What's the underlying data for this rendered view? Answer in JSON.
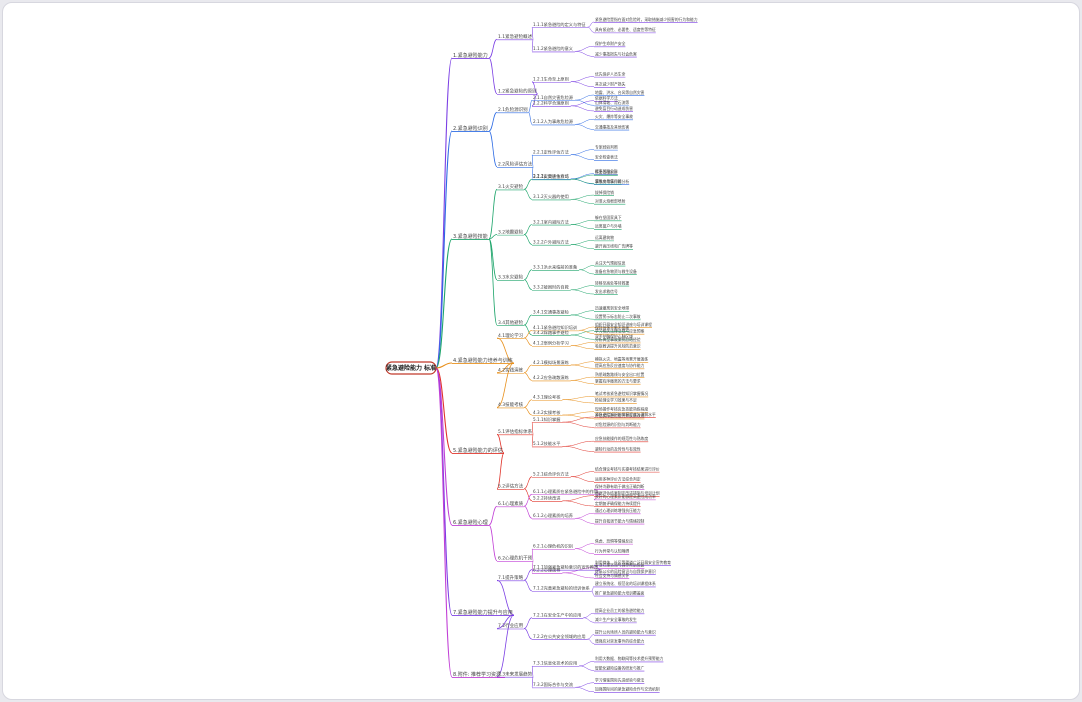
{
  "mindmap": {
    "root": "紧急避险能力 标准",
    "branches": [
      {
        "label": "1.紧急避险能力",
        "color": "#7b3fe4",
        "children": [
          {
            "label": "1.1紧急避险概述",
            "children": [
              {
                "label": "1.1.1紧急避险的定义与特征",
                "items": [
                  "紧急避险是指在面对危险时，采取措施减少损害的行为和能力",
                  "具有紧迫性、必要性、适度性等特征"
                ]
              },
              {
                "label": "1.1.2紧急避险的意义",
                "items": [
                  "保护生命财产安全",
                  "减少事故损失与社会危害"
                ]
              }
            ]
          },
          {
            "label": "1.2紧急避险的原则",
            "children": [
              {
                "label": "1.2.1生命至上原则",
                "items": [
                  "优先保护人员生命",
                  "其次减少财产损失"
                ]
              },
              {
                "label": "1.2.2科学合理原则",
                "items": [
                  "依据科学方法",
                  "避免盲目行动造成伤害"
                ]
              }
            ]
          }
        ]
      },
      {
        "label": "2.紧急避险识别",
        "color": "#2d6be4",
        "children": [
          {
            "label": "2.1危险源识别",
            "children": [
              {
                "label": "2.1.1自然灾害危险源",
                "items": [
                  "地震、洪水、台风等自然灾害",
                  "山体滑坡、泥石流等"
                ]
              },
              {
                "label": "2.1.2人为事故危险源",
                "items": [
                  "火灾、爆炸等安全事故",
                  "交通事故及其他伤害"
                ]
              }
            ]
          },
          {
            "label": "2.2风险评估方法",
            "children": [
              {
                "label": "2.2.1定性评估方法",
                "items": [
                  "专家经验判断",
                  "安全检查表法"
                ]
              },
              {
                "label": "2.2.2定量评估方法",
                "items": [
                  "概率风险分析",
                  "事故树与事件树分析"
                ]
              }
            ]
          }
        ]
      },
      {
        "label": "3.紧急避险技能",
        "color": "#1ea56b",
        "children": [
          {
            "label": "3.1火灾避险",
            "children": [
              {
                "label": "3.1.1火灾逃生技巧",
                "items": [
                  "低姿弯腰前进",
                  "湿毛巾捂住口鼻"
                ]
              },
              {
                "label": "3.1.2灭火器的使用",
                "items": [
                  "拔掉保险销",
                  "对准火焰根部喷射"
                ]
              }
            ]
          },
          {
            "label": "3.2地震避险",
            "children": [
              {
                "label": "3.2.1室内避险方法",
                "items": [
                  "躲在坚固家具下",
                  "远离窗户与外墙"
                ]
              },
              {
                "label": "3.2.2户外避险方法",
                "items": [
                  "远离建筑物",
                  "避开高压线和广告牌等"
                ]
              }
            ]
          },
          {
            "label": "3.3水灾避险",
            "children": [
              {
                "label": "3.3.1洪水来临前的准备",
                "items": [
                  "关注天气预报信息",
                  "准备应急物资与救生设备"
                ]
              },
              {
                "label": "3.3.2被困时的自救",
                "items": [
                  "转移至高处等待救援",
                  "发出求救信号"
                ]
              }
            ]
          },
          {
            "label": "3.4其他避险",
            "children": [
              {
                "label": "3.4.1交通事故避险",
                "items": [
                  "迅速撤离到安全地带",
                  "设置警示标志防止二次事故"
                ]
              },
              {
                "label": "3.4.2踩踏事件避险",
                "items": [
                  "保持身体平衡不倒地",
                  "双手护胸保护心肺区域"
                ]
              }
            ]
          }
        ]
      },
      {
        "label": "4.紧急避险能力培养与训练",
        "color": "#e8901c",
        "children": [
          {
            "label": "4.1理论学习",
            "children": [
              {
                "label": "4.1.1紧急避险知识培训",
                "items": [
                  "组织开展安全知识讲座与培训课程",
                  "学习相关法律法规与应急预案"
                ]
              },
              {
                "label": "4.1.2案例分析学习",
                "items": [
                  "分析典型事故案例总结经验",
                  "吸取教训提升风险防范意识"
                ]
              }
            ]
          },
          {
            "label": "4.2实践演练",
            "children": [
              {
                "label": "4.2.1模拟场景演练",
                "items": [
                  "模拟火灾、地震等场景开展演练",
                  "提高应急反应速度与协作能力"
                ]
              },
              {
                "label": "4.2.2应急疏散演练",
                "items": [
                  "熟悉疏散路线与安全出口位置",
                  "掌握有序撤离的方法与要求"
                ]
              }
            ]
          },
          {
            "label": "4.3技能考核",
            "children": [
              {
                "label": "4.3.1理论考核",
                "items": [
                  "笔试考核紧急避险知识掌握情况",
                  "检验理论学习效果与不足"
                ]
              },
              {
                "label": "4.3.2实操考核",
                "items": [
                  "现场操作考核应急技能熟练程度",
                  "评估实际避险能力并反馈改进"
                ]
              }
            ]
          }
        ]
      },
      {
        "label": "5.紧急避险能力的评估",
        "color": "#e0342b",
        "children": [
          {
            "label": "5.1评估指标体系",
            "children": [
              {
                "label": "5.1.1知识掌握",
                "items": [
                  "紧急避险知识的掌握程度与理解水平",
                  "对危险源的识别与判断能力"
                ]
              },
              {
                "label": "5.1.2技能水平",
                "items": [
                  "应急技能操作的规范性与熟练度",
                  "避险行动的及时性与有效性"
                ]
              }
            ]
          },
          {
            "label": "5.2评估方法",
            "children": [
              {
                "label": "5.2.1综合评价方法",
                "items": [
                  "结合理论考核与实操考核结果进行评价",
                  "运用多种评价方法综合判定"
                ]
              },
              {
                "label": "5.2.2持续改进",
                "items": [
                  "根据评估结果制定改进措施与培训计划",
                  "定期复评确保能力持续提升"
                ]
              }
            ]
          }
        ]
      },
      {
        "label": "6.紧急避险心理",
        "color": "#c13fd6",
        "children": [
          {
            "label": "6.1心理素质",
            "children": [
              {
                "label": "6.1.1心理素质在紧急避险中的作用",
                "items": [
                  "保持冷静有助于做出正确判断",
                  "良好的心理素质能够提高避险成功率"
                ]
              },
              {
                "label": "6.1.2心理素质的培养",
                "items": [
                  "通过心理训练增强抗压能力",
                  "提升自我调节能力与情绪控制"
                ]
              }
            ]
          },
          {
            "label": "6.2心理危机干预",
            "children": [
              {
                "label": "6.2.1心理危机的识别",
                "items": [
                  "焦虑、恐惧等情绪反应",
                  "行为异常与认知障碍"
                ]
              },
              {
                "label": "6.2.2心理疏导",
                "items": [
                  "专业心理咨询与辅导帮助恢复",
                  "社会支持与情感关怀"
                ]
              }
            ]
          }
        ]
      },
      {
        "label": "7.紧急避险能力提升与应用",
        "color": "#7b3fe4",
        "children": [
          {
            "label": "7.1提升策略",
            "children": [
              {
                "label": "7.1.1加强紧急避险意识的宣传教育",
                "items": [
                  "利用媒体、社区等渠道广泛开展安全宣传教育",
                  "提高公众的风险意识与自我保护意识"
                ]
              },
              {
                "label": "7.1.2完善紧急避险的培训体系",
                "items": [
                  "建立系统化、规范化的培训课程体系",
                  "推广紧急避险能力培训覆盖面"
                ]
              }
            ]
          },
          {
            "label": "7.2行业应用",
            "children": [
              {
                "label": "7.2.1在安全生产中的应用",
                "items": [
                  "提高企业员工的紧急避险能力",
                  "减少生产安全事故的发生"
                ]
              },
              {
                "label": "7.2.2在公共安全领域的应用",
                "items": [
                  "提升公共场所人员的避险能力与意识",
                  "增强应对突发事件的综合能力"
                ]
              }
            ]
          },
          {
            "label": "7.3未来发展趋势",
            "children": [
              {
                "label": "7.3.1信息化技术的应用",
                "items": [
                  "利用大数据、物联网等技术提升预警能力",
                  "智能化避险设备的研发与推广"
                ]
              },
              {
                "label": "7.3.2国际合作与交流",
                "items": [
                  "学习借鉴国际先进经验与做法",
                  "加强国际间的紧急避险合作与交流机制"
                ]
              }
            ]
          }
        ]
      },
      {
        "label": "8.附件: 推荐学习资源",
        "color": "#c13fd6",
        "children": []
      }
    ]
  }
}
